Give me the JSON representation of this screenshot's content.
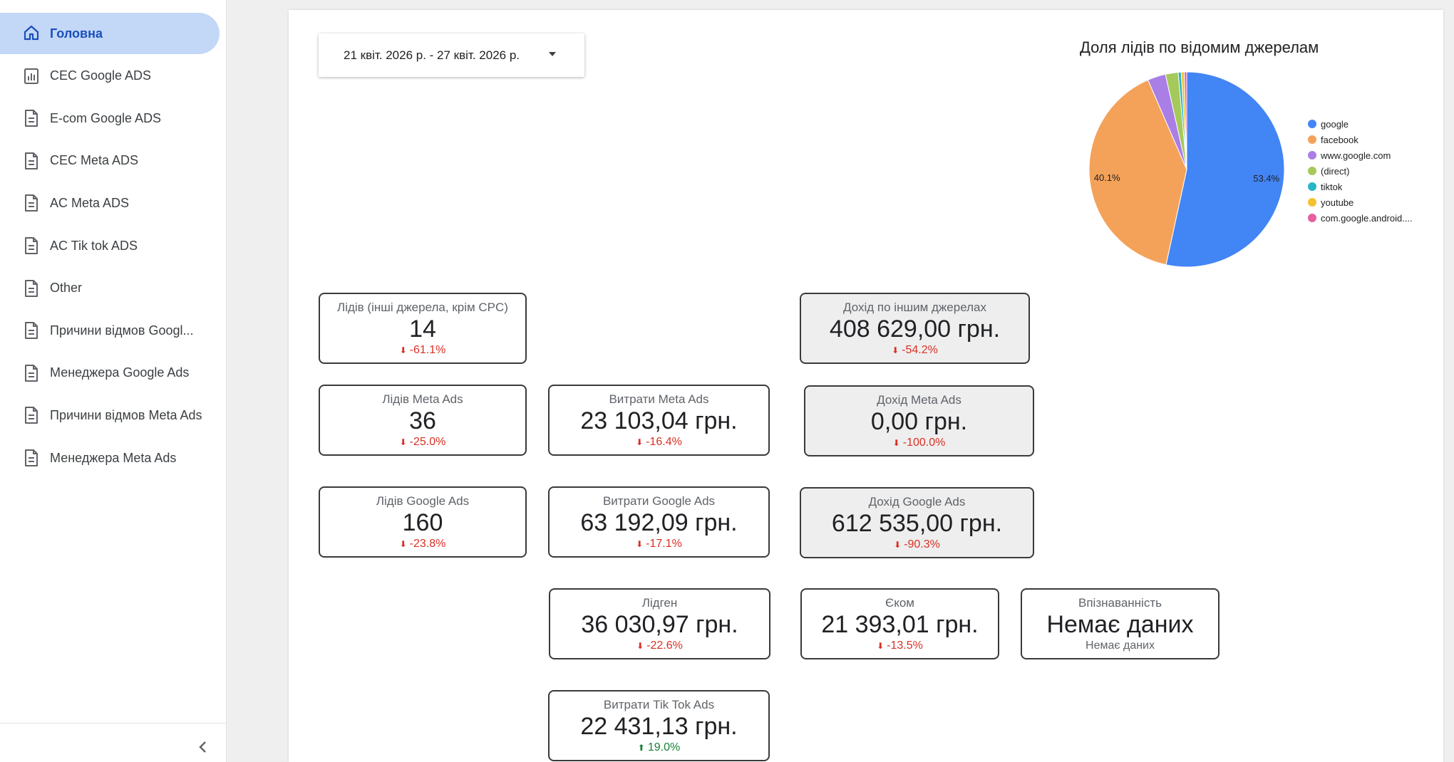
{
  "sidebar": {
    "items": [
      {
        "label": "Головна",
        "icon": "home-icon",
        "active": true
      },
      {
        "label": "CEC Google ADS",
        "icon": "report-chart-icon"
      },
      {
        "label": "E-com Google ADS",
        "icon": "document-icon"
      },
      {
        "label": "CEC Meta ADS",
        "icon": "document-icon"
      },
      {
        "label": "AC Meta ADS",
        "icon": "document-icon"
      },
      {
        "label": "AC Tik tok ADS",
        "icon": "document-icon"
      },
      {
        "label": "Other",
        "icon": "document-icon"
      },
      {
        "label": "Причини відмов Googl...",
        "icon": "document-icon"
      },
      {
        "label": "Менеджера Google Ads",
        "icon": "document-icon"
      },
      {
        "label": "Причини відмов Meta Ads",
        "icon": "document-icon"
      },
      {
        "label": "Менеджера Meta Ads",
        "icon": "document-icon"
      }
    ],
    "collapse_icon": "chevron-left-icon"
  },
  "date_range": {
    "label": "21 квіт. 2026 р. - 27 квіт. 2026 р.",
    "caret_icon": "caret-down-icon"
  },
  "chart_data": {
    "type": "pie",
    "title": "Доля лідів по відомим джерелам",
    "slices": [
      {
        "name": "google",
        "value": 53.4,
        "color": "#4285f4",
        "label": "53.4%"
      },
      {
        "name": "facebook",
        "value": 40.1,
        "color": "#f4a259",
        "label": "40.1%"
      },
      {
        "name": "www.google.com",
        "value": 3.0,
        "color": "#a97fe6",
        "label": ""
      },
      {
        "name": "(direct)",
        "value": 2.1,
        "color": "#a5c95a",
        "label": ""
      },
      {
        "name": "tiktok",
        "value": 0.5,
        "color": "#26b5c9",
        "label": ""
      },
      {
        "name": "youtube",
        "value": 0.5,
        "color": "#f2c230",
        "label": ""
      },
      {
        "name": "com.google.android....",
        "value": 0.4,
        "color": "#e65fa0",
        "label": ""
      }
    ],
    "legend_position": "right"
  },
  "scorecards": {
    "leads_other": {
      "title": "Лідів (інші джерела, крім CPC)",
      "value": "14",
      "delta": "-61.1%",
      "direction": "down"
    },
    "revenue_other": {
      "title": "Дохід по іншим джерелах",
      "value": "408 629,00 грн.",
      "delta": "-54.2%",
      "direction": "down"
    },
    "leads_meta": {
      "title": "Лідів Meta Ads",
      "value": "36",
      "delta": "-25.0%",
      "direction": "down"
    },
    "spend_meta": {
      "title": "Витрати Meta Ads",
      "value": "23 103,04 грн.",
      "delta": "-16.4%",
      "direction": "down"
    },
    "revenue_meta": {
      "title": "Дохід Meta Ads",
      "value": "0,00 грн.",
      "delta": "-100.0%",
      "direction": "down"
    },
    "leads_google": {
      "title": "Лідів Google Ads",
      "value": "160",
      "delta": "-23.8%",
      "direction": "down"
    },
    "spend_google": {
      "title": "Витрати Google Ads",
      "value": "63 192,09 грн.",
      "delta": "-17.1%",
      "direction": "down"
    },
    "revenue_google": {
      "title": "Дохід Google Ads",
      "value": "612 535,00 грн.",
      "delta": "-90.3%",
      "direction": "down"
    },
    "leadgen": {
      "title": "Лідген",
      "value": "36 030,97 грн.",
      "delta": "-22.6%",
      "direction": "down"
    },
    "ecom": {
      "title": "Єком",
      "value": "21 393,01 грн.",
      "delta": "-13.5%",
      "direction": "down"
    },
    "awareness": {
      "title": "Впізнаванність",
      "value": "Немає даних",
      "delta": "Немає даних",
      "direction": "none"
    },
    "spend_tiktok": {
      "title": "Витрати Tik Tok Ads",
      "value": "22 431,13 грн.",
      "delta": "19.0%",
      "direction": "up"
    }
  },
  "arrows": {
    "down": "⬇",
    "up": "⬆"
  }
}
